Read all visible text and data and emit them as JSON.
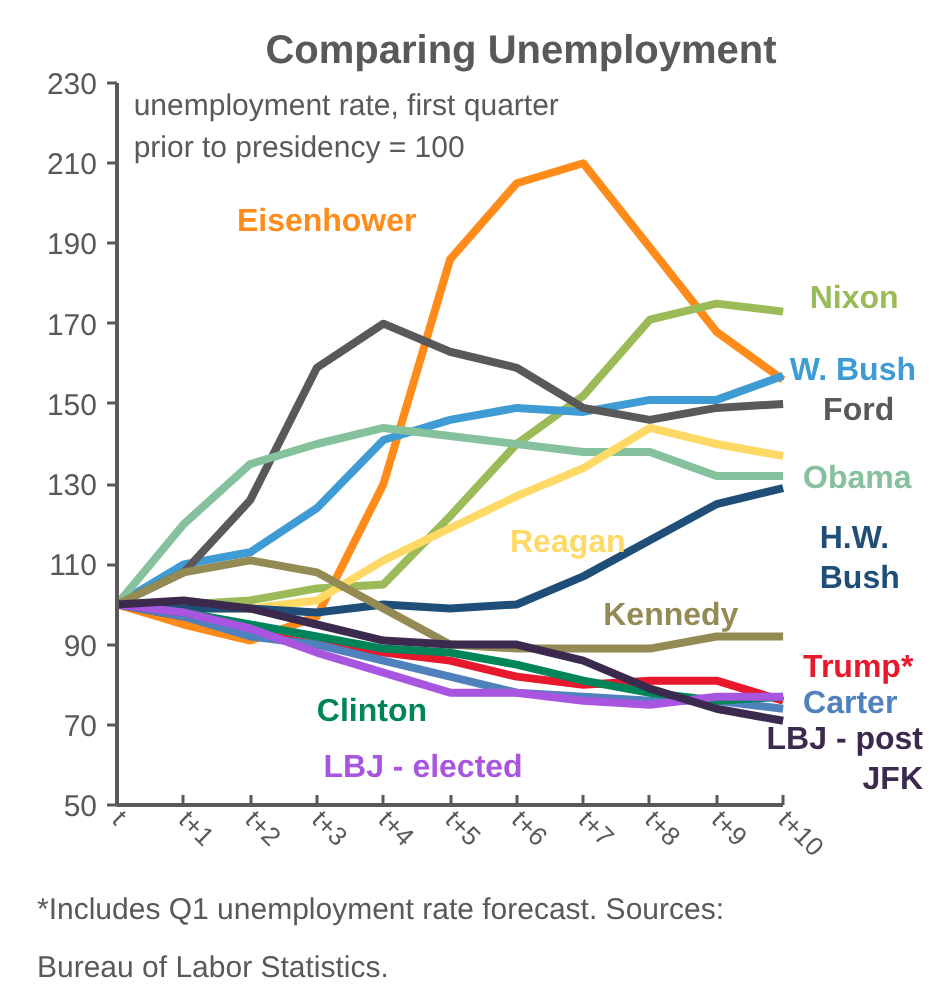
{
  "chart_data": {
    "type": "line",
    "title": "Comparing Unemployment",
    "subtitle": "unemployment rate, first quarter\nprior to presidency = 100",
    "categories": [
      "t",
      "t+1",
      "t+2",
      "t+3",
      "t+4",
      "t+5",
      "t+6",
      "t+7",
      "t+8",
      "t+9",
      "t+10"
    ],
    "ylim": [
      50,
      230
    ],
    "yticks": [
      50,
      70,
      90,
      110,
      130,
      150,
      170,
      190,
      210,
      230
    ],
    "grid": false,
    "line_style": "solid",
    "marker": "none",
    "series": [
      {
        "name": "Eisenhower",
        "color": "#ff8c1a",
        "values": [
          100,
          95,
          91,
          97,
          130,
          186,
          205,
          210,
          189,
          168,
          156
        ]
      },
      {
        "name": "Nixon",
        "color": "#9bbb59",
        "values": [
          100,
          100,
          101,
          104,
          105,
          122,
          140,
          152,
          171,
          175,
          173
        ]
      },
      {
        "name": "W. Bush",
        "color": "#3e9bd3",
        "values": [
          100,
          110,
          113,
          124,
          141,
          146,
          149,
          148,
          151,
          151,
          157
        ]
      },
      {
        "name": "Ford",
        "color": "#595959",
        "values": [
          100,
          108,
          126,
          159,
          170,
          163,
          159,
          149,
          146,
          149,
          150
        ]
      },
      {
        "name": "Obama",
        "color": "#84c19c",
        "values": [
          100,
          120,
          135,
          140,
          144,
          142,
          140,
          138,
          138,
          132,
          132
        ]
      },
      {
        "name": "Reagan",
        "color": "#ffd966",
        "values": [
          100,
          99,
          99,
          101,
          111,
          119,
          127,
          134,
          144,
          140,
          137
        ]
      },
      {
        "name": "H.W.\nBush",
        "color": "#1f4e79",
        "values": [
          100,
          99,
          99,
          98,
          100,
          99,
          100,
          107,
          116,
          125,
          129
        ]
      },
      {
        "name": "Kennedy",
        "color": "#948a54",
        "values": [
          100,
          108,
          111,
          108,
          99,
          90,
          89,
          89,
          89,
          92,
          92
        ]
      },
      {
        "name": "Trump*",
        "color": "#e8192c",
        "values": [
          100,
          97,
          93,
          90,
          88,
          86,
          82,
          80,
          81,
          81,
          76
        ]
      },
      {
        "name": "Carter",
        "color": "#4f81bd",
        "values": [
          100,
          97,
          92,
          90,
          86,
          82,
          78,
          77,
          76,
          76,
          74
        ]
      },
      {
        "name": "Clinton",
        "color": "#00855b",
        "values": [
          100,
          98,
          95,
          92,
          89,
          88,
          85,
          81,
          78,
          76,
          77
        ]
      },
      {
        "name": "LBJ - elected",
        "color": "#a855e0",
        "values": [
          100,
          98,
          94,
          88,
          83,
          78,
          78,
          76,
          75,
          77,
          77
        ]
      },
      {
        "name": "LBJ - post\nJFK",
        "color": "#3b2a4d",
        "values": [
          100,
          101,
          99,
          95,
          91,
          90,
          90,
          86,
          79,
          74,
          71
        ]
      }
    ],
    "annotations": [
      "*Includes Q1 unemployment rate forecast. Sources: Bureau of Labor Statistics."
    ]
  }
}
